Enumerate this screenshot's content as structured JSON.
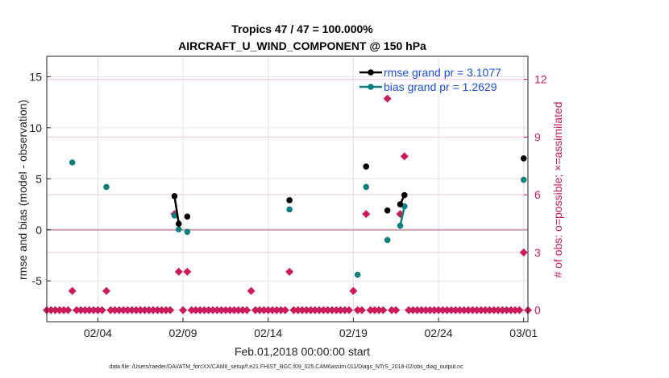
{
  "chart_data": {
    "type": "scatter",
    "title_line1": "Tropics 47 / 47 = 100.000%",
    "title_line2": "AIRCRAFT_U_WIND_COMPONENT @ 150 hPa",
    "xlabel": "Feb.01,2018 00:00:00 start",
    "ylabel": "rmse and bias (model - observation)",
    "ylabel_right": "# of obs: o=possible; ×=assimilated",
    "footer": "data file: /Users/raeder/DAI/ATM_forcXX/CAM6_setup/f.e21.FHIST_BGC.f09_025.CAM6assim.011/Diags_NTrS_2018-02/obs_diag_output.nc",
    "xlim": [
      1.0,
      29.25
    ],
    "ylim": [
      -9,
      17
    ],
    "ylim_right": [
      -0.6,
      13.2
    ],
    "x_ticks": [
      4,
      9,
      14,
      19,
      24,
      29
    ],
    "x_tick_labels": [
      "02/04",
      "02/09",
      "02/14",
      "02/19",
      "02/24",
      "03/01"
    ],
    "y_ticks": [
      -5,
      0,
      5,
      10,
      15
    ],
    "y_tick_labels": [
      "-5",
      "0",
      "5",
      "10",
      "15"
    ],
    "y_ticks_right": [
      0,
      3,
      6,
      9,
      12
    ],
    "y_tick_labels_right": [
      "0",
      "3",
      "6",
      "9",
      "12"
    ],
    "legend": {
      "placement": "top-right",
      "entries": [
        "rmse grand pr = 3.1077",
        "bias grand pr = 1.2629"
      ]
    },
    "colors": {
      "rmse": "#000000",
      "bias": "#0f7f7f",
      "obs": "#cc1a5a",
      "zero_line": "#c9a0a8"
    },
    "series": [
      {
        "name": "rmse",
        "points": [
          {
            "x": 8.5,
            "y": 3.3
          },
          {
            "x": 8.75,
            "y": 0.6
          },
          {
            "x": 9.25,
            "y": 1.3
          },
          {
            "x": 15.25,
            "y": 2.9
          },
          {
            "x": 19.75,
            "y": 6.2
          },
          {
            "x": 21.0,
            "y": 1.9
          },
          {
            "x": 21.75,
            "y": 2.5
          },
          {
            "x": 22.0,
            "y": 3.4
          },
          {
            "x": 29.0,
            "y": 7.0
          }
        ],
        "segments": [
          [
            0,
            1
          ],
          [
            6,
            7
          ]
        ]
      },
      {
        "name": "bias",
        "points": [
          {
            "x": 2.5,
            "y": 6.6
          },
          {
            "x": 4.5,
            "y": 4.2
          },
          {
            "x": 8.5,
            "y": 1.4
          },
          {
            "x": 8.75,
            "y": 0.05
          },
          {
            "x": 9.25,
            "y": -0.2
          },
          {
            "x": 15.25,
            "y": 2.0
          },
          {
            "x": 19.25,
            "y": -4.4
          },
          {
            "x": 19.75,
            "y": 4.2
          },
          {
            "x": 21.0,
            "y": -1.0
          },
          {
            "x": 21.75,
            "y": 0.4
          },
          {
            "x": 22.0,
            "y": 2.3
          },
          {
            "x": 29.0,
            "y": 4.9
          }
        ],
        "segments": [
          [
            9,
            10
          ]
        ]
      },
      {
        "name": "# of obs",
        "axis": "right",
        "points": [
          {
            "x": 2.5,
            "y": 1
          },
          {
            "x": 4.5,
            "y": 1
          },
          {
            "x": 8.5,
            "y": 5
          },
          {
            "x": 8.75,
            "y": 2
          },
          {
            "x": 9.25,
            "y": 2
          },
          {
            "x": 13.0,
            "y": 1
          },
          {
            "x": 15.25,
            "y": 2
          },
          {
            "x": 19.0,
            "y": 1
          },
          {
            "x": 19.75,
            "y": 5
          },
          {
            "x": 21.0,
            "y": 11
          },
          {
            "x": 21.75,
            "y": 5
          },
          {
            "x": 22.0,
            "y": 8
          },
          {
            "x": 29.0,
            "y": 3
          }
        ],
        "zero_points": {
          "start": 1.0,
          "end": 29.25,
          "step": 0.25
        }
      }
    ]
  }
}
